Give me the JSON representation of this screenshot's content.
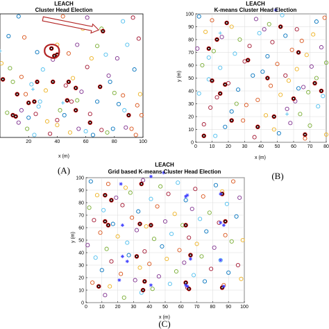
{
  "chart_data": [
    {
      "panel": "A",
      "type": "scatter",
      "title": "LEACH",
      "subtitle": "Cluster Head Election",
      "xlabel": "x (m)",
      "ylabel": "",
      "xlim": [
        0,
        100
      ],
      "ylim": [
        0,
        100
      ],
      "xticks": [
        "20",
        "40",
        "60",
        "80",
        "100"
      ],
      "yticks": [],
      "grid": false,
      "annotations": [
        "arrow pointing to cluster head near (70,85)",
        "red loop around nodes near (36,70)"
      ],
      "series": [
        {
          "marker": "circle",
          "x": [
            13,
            44,
            58,
            61,
            71,
            86,
            93,
            6,
            17,
            40,
            54,
            68,
            89,
            97,
            26,
            48,
            64,
            82,
            7,
            30,
            61,
            94,
            15,
            51,
            76,
            9,
            22,
            46,
            77,
            18,
            32,
            57,
            80,
            28,
            50,
            68,
            86,
            98,
            15,
            42,
            87,
            25,
            45,
            99,
            33,
            13,
            19,
            60,
            71,
            79,
            92,
            49,
            55,
            75,
            24,
            35,
            65,
            95,
            40,
            88,
            5,
            27,
            63,
            83,
            96,
            1,
            37,
            54,
            74,
            40,
            20
          ],
          "y": [
            98,
            98,
            88,
            97,
            88,
            94,
            97,
            82,
            81,
            75,
            75,
            74,
            75,
            80,
            69,
            68,
            64,
            64,
            56,
            55,
            57,
            55,
            49,
            48,
            50,
            45,
            43,
            42,
            45,
            35,
            38,
            37,
            36,
            29,
            29,
            29,
            34,
            35,
            22,
            22,
            22,
            19,
            18,
            18,
            13,
            12,
            7,
            5,
            6,
            7,
            7,
            4,
            7,
            4,
            2,
            3,
            2,
            2,
            10,
            8,
            20,
            25,
            19,
            27,
            26,
            60,
            63,
            30,
            67,
            14,
            16
          ],
          "colors": [
            "#0072BD",
            "#D95319",
            "#EDB120",
            "#7E2F8E",
            "#77AC30",
            "#4DBEEE",
            "#A2142F",
            "#0072BD",
            "#D95319",
            "#EDB120",
            "#7E2F8E",
            "#77AC30",
            "#4DBEEE",
            "#A2142F",
            "#0072BD",
            "#D95319",
            "#EDB120",
            "#7E2F8E",
            "#77AC30",
            "#4DBEEE",
            "#A2142F",
            "#0072BD",
            "#D95319",
            "#EDB120",
            "#7E2F8E",
            "#77AC30",
            "#4DBEEE",
            "#A2142F",
            "#0072BD",
            "#D95319",
            "#EDB120",
            "#7E2F8E",
            "#77AC30",
            "#4DBEEE",
            "#A2142F",
            "#0072BD",
            "#D95319",
            "#EDB120",
            "#7E2F8E",
            "#77AC30",
            "#4DBEEE",
            "#A2142F",
            "#0072BD",
            "#D95319",
            "#EDB120",
            "#7E2F8E",
            "#77AC30",
            "#4DBEEE",
            "#A2142F",
            "#0072BD",
            "#D95319",
            "#EDB120",
            "#7E2F8E",
            "#77AC30",
            "#4DBEEE",
            "#A2142F",
            "#0072BD",
            "#D95319",
            "#EDB120",
            "#7E2F8E",
            "#77AC30",
            "#4DBEEE",
            "#A2142F",
            "#0072BD",
            "#D95319",
            "#EDB120",
            "#7E2F8E",
            "#77AC30",
            "#4DBEEE",
            "#A2142F",
            "#0072BD"
          ]
        },
        {
          "marker": "cluster-head",
          "x": [
            72,
            36,
            38,
            40,
            2,
            26,
            37,
            48,
            53,
            70,
            12,
            20,
            9,
            11,
            24,
            63,
            90,
            47,
            53
          ],
          "y": [
            86,
            72,
            66,
            67,
            47,
            45,
            45,
            45,
            40,
            41,
            35,
            28,
            18,
            17,
            29,
            12,
            18,
            30,
            22
          ]
        },
        {
          "marker": "plus",
          "x": [
            0,
            44,
            23
          ],
          "y": [
            70,
            28,
            39
          ]
        }
      ]
    },
    {
      "panel": "B",
      "type": "scatter",
      "title": "LEACH",
      "subtitle": "K-means Cluster Head Election",
      "xlabel": "x (m)",
      "ylabel": "y (m)",
      "xlim": [
        0,
        80
      ],
      "ylim": [
        0,
        100
      ],
      "xticks": [
        "0",
        "10",
        "20",
        "30",
        "40",
        "50",
        "60",
        "70",
        "80"
      ],
      "yticks": [
        "0",
        "10",
        "20",
        "30",
        "40",
        "50",
        "60",
        "70",
        "80",
        "90",
        "100"
      ],
      "grid": true,
      "series": [
        {
          "marker": "circle",
          "x": [
            2,
            10,
            22,
            37,
            45,
            53,
            62,
            74,
            79,
            6,
            16,
            27,
            39,
            47,
            55,
            65,
            72,
            1,
            11,
            24,
            33,
            44,
            59,
            68,
            77,
            4,
            15,
            30,
            41,
            50,
            62,
            71,
            80,
            8,
            20,
            35,
            46,
            57,
            66,
            74,
            2,
            13,
            26,
            38,
            52,
            61,
            69,
            78,
            9,
            22,
            31,
            43,
            56,
            64,
            75,
            5,
            18,
            29,
            48,
            58,
            70,
            12,
            36,
            51,
            67,
            80,
            42,
            25,
            8,
            55,
            63
          ],
          "y": [
            98,
            95,
            90,
            96,
            92,
            99,
            88,
            94,
            97,
            86,
            82,
            80,
            85,
            78,
            83,
            79,
            84,
            73,
            71,
            69,
            75,
            67,
            72,
            68,
            74,
            60,
            58,
            63,
            55,
            61,
            57,
            59,
            62,
            49,
            46,
            52,
            44,
            48,
            43,
            50,
            38,
            35,
            41,
            33,
            37,
            32,
            39,
            36,
            27,
            24,
            29,
            21,
            26,
            22,
            28,
            14,
            12,
            17,
            10,
            15,
            13,
            5,
            4,
            7,
            3,
            6,
            88,
            30,
            66,
            52,
            42
          ],
          "colors": [
            "#0072BD",
            "#D95319",
            "#EDB120",
            "#7E2F8E",
            "#77AC30",
            "#4DBEEE",
            "#A2142F",
            "#0072BD",
            "#D95319",
            "#EDB120",
            "#7E2F8E",
            "#77AC30",
            "#4DBEEE",
            "#A2142F",
            "#0072BD",
            "#D95319",
            "#EDB120",
            "#7E2F8E",
            "#77AC30",
            "#4DBEEE",
            "#A2142F",
            "#0072BD",
            "#D95319",
            "#EDB120",
            "#7E2F8E",
            "#77AC30",
            "#4DBEEE",
            "#A2142F",
            "#0072BD",
            "#D95319",
            "#EDB120",
            "#7E2F8E",
            "#77AC30",
            "#4DBEEE",
            "#A2142F",
            "#0072BD",
            "#D95319",
            "#EDB120",
            "#7E2F8E",
            "#77AC30",
            "#4DBEEE",
            "#A2142F",
            "#0072BD",
            "#D95319",
            "#EDB120",
            "#7E2F8E",
            "#77AC30",
            "#4DBEEE",
            "#A2142F",
            "#0072BD",
            "#D95319",
            "#EDB120",
            "#7E2F8E",
            "#77AC30",
            "#4DBEEE",
            "#A2142F",
            "#0072BD",
            "#D95319",
            "#EDB120",
            "#7E2F8E",
            "#77AC30",
            "#4DBEEE",
            "#A2142F",
            "#0072BD",
            "#D95319",
            "#EDB120",
            "#7E2F8E",
            "#77AC30",
            "#4DBEEE",
            "#A2142F",
            "#0072BD"
          ]
        },
        {
          "marker": "cluster-head",
          "x": [
            19,
            52,
            13,
            8,
            32,
            63,
            10,
            18,
            44,
            73,
            48,
            15,
            22,
            38,
            67,
            5,
            77,
            60
          ],
          "y": [
            93,
            90,
            80,
            73,
            64,
            70,
            48,
            45,
            50,
            46,
            20,
            38,
            17,
            12,
            6,
            5,
            40,
            34
          ]
        },
        {
          "marker": "plus",
          "x": [
            15,
            56
          ],
          "y": [
            85,
            22
          ]
        },
        {
          "marker": "star",
          "x": [
            49
          ],
          "y": [
            103
          ]
        }
      ]
    },
    {
      "panel": "C",
      "type": "scatter",
      "title": "LEACH",
      "subtitle": "Grid based K-means Cluster Head Election",
      "xlabel": "x (m)",
      "ylabel": "y (m)",
      "xlim": [
        0,
        100
      ],
      "ylim": [
        0,
        100
      ],
      "xticks": [
        "0",
        "10",
        "20",
        "30",
        "40",
        "50",
        "60",
        "70",
        "80",
        "90",
        "100"
      ],
      "yticks": [
        "0",
        "10",
        "20",
        "30",
        "40",
        "50",
        "60",
        "70",
        "80",
        "90",
        "100"
      ],
      "grid": true,
      "series": [
        {
          "marker": "circle",
          "x": [
            3,
            14,
            25,
            36,
            47,
            58,
            69,
            82,
            93,
            7,
            19,
            28,
            41,
            52,
            63,
            74,
            86,
            97,
            2,
            11,
            23,
            33,
            45,
            56,
            67,
            78,
            89,
            5,
            17,
            29,
            38,
            50,
            61,
            72,
            84,
            95,
            9,
            20,
            32,
            43,
            54,
            65,
            76,
            88,
            99,
            1,
            13,
            26,
            37,
            48,
            59,
            70,
            81,
            92,
            6,
            16,
            27,
            40,
            51,
            62,
            73,
            85,
            96,
            10,
            22,
            34,
            46,
            57,
            68,
            79,
            90,
            4,
            15,
            31,
            42,
            53,
            64,
            75,
            87,
            98,
            12,
            24,
            35
          ],
          "y": [
            97,
            95,
            92,
            98,
            93,
            96,
            91,
            94,
            97,
            86,
            84,
            88,
            83,
            87,
            82,
            85,
            89,
            84,
            76,
            74,
            78,
            73,
            77,
            71,
            75,
            72,
            79,
            66,
            63,
            68,
            61,
            65,
            62,
            67,
            64,
            69,
            56,
            53,
            58,
            51,
            55,
            52,
            57,
            54,
            50,
            46,
            43,
            48,
            41,
            45,
            42,
            47,
            44,
            49,
            36,
            33,
            38,
            31,
            35,
            32,
            37,
            34,
            30,
            26,
            23,
            28,
            21,
            25,
            22,
            27,
            24,
            16,
            13,
            18,
            11,
            15,
            12,
            17,
            14,
            19,
            6,
            4,
            8
          ],
          "colors": [
            "#0072BD",
            "#D95319",
            "#EDB120",
            "#7E2F8E",
            "#77AC30",
            "#4DBEEE",
            "#A2142F",
            "#0072BD",
            "#D95319",
            "#EDB120",
            "#7E2F8E",
            "#77AC30",
            "#4DBEEE",
            "#A2142F",
            "#0072BD",
            "#D95319",
            "#EDB120",
            "#7E2F8E",
            "#77AC30",
            "#4DBEEE",
            "#A2142F",
            "#0072BD",
            "#D95319",
            "#EDB120",
            "#7E2F8E",
            "#77AC30",
            "#4DBEEE",
            "#A2142F",
            "#0072BD",
            "#D95319",
            "#EDB120",
            "#7E2F8E",
            "#77AC30",
            "#4DBEEE",
            "#A2142F",
            "#0072BD",
            "#D95319",
            "#EDB120",
            "#7E2F8E",
            "#77AC30",
            "#4DBEEE",
            "#A2142F",
            "#0072BD",
            "#D95319",
            "#EDB120",
            "#7E2F8E",
            "#77AC30",
            "#4DBEEE",
            "#A2142F",
            "#0072BD",
            "#D95319",
            "#EDB120",
            "#7E2F8E",
            "#77AC30",
            "#4DBEEE",
            "#A2142F",
            "#0072BD",
            "#D95319",
            "#EDB120",
            "#7E2F8E",
            "#77AC30",
            "#4DBEEE",
            "#A2142F",
            "#0072BD",
            "#D95319",
            "#EDB120",
            "#7E2F8E",
            "#77AC30",
            "#4DBEEE",
            "#A2142F",
            "#0072BD",
            "#D95319",
            "#EDB120",
            "#7E2F8E",
            "#77AC30",
            "#4DBEEE",
            "#A2142F",
            "#0072BD",
            "#D95319",
            "#EDB120",
            "#7E2F8E",
            "#77AC30",
            "#4DBEEE"
          ]
        },
        {
          "marker": "cluster-head",
          "x": [
            35,
            12,
            16,
            34,
            41,
            63,
            86,
            12,
            14,
            32,
            66,
            88,
            8,
            37,
            63,
            86,
            36,
            65
          ],
          "y": [
            95,
            86,
            82,
            63,
            62,
            62,
            87,
            65,
            62,
            37,
            38,
            65,
            13,
            17,
            16,
            12,
            10,
            11
          ]
        },
        {
          "marker": "star",
          "x": [
            22,
            41,
            49,
            64,
            85,
            87,
            23,
            63,
            85,
            23,
            26,
            66,
            85,
            63,
            87,
            21,
            41,
            64
          ],
          "y": [
            95,
            101,
            104,
            86,
            87,
            62,
            62,
            85,
            64,
            37,
            33,
            35,
            34,
            14,
            13,
            18,
            14,
            13
          ]
        }
      ]
    }
  ],
  "labels": {
    "a": "(A)",
    "b": "(B)",
    "c": "(C)"
  },
  "colors": {
    "cluster_head": "#1a0000",
    "cluster_head_ring": "#c00000",
    "annotation": "#b22222",
    "axis": "#000000",
    "grid": "#d9d9d9"
  }
}
